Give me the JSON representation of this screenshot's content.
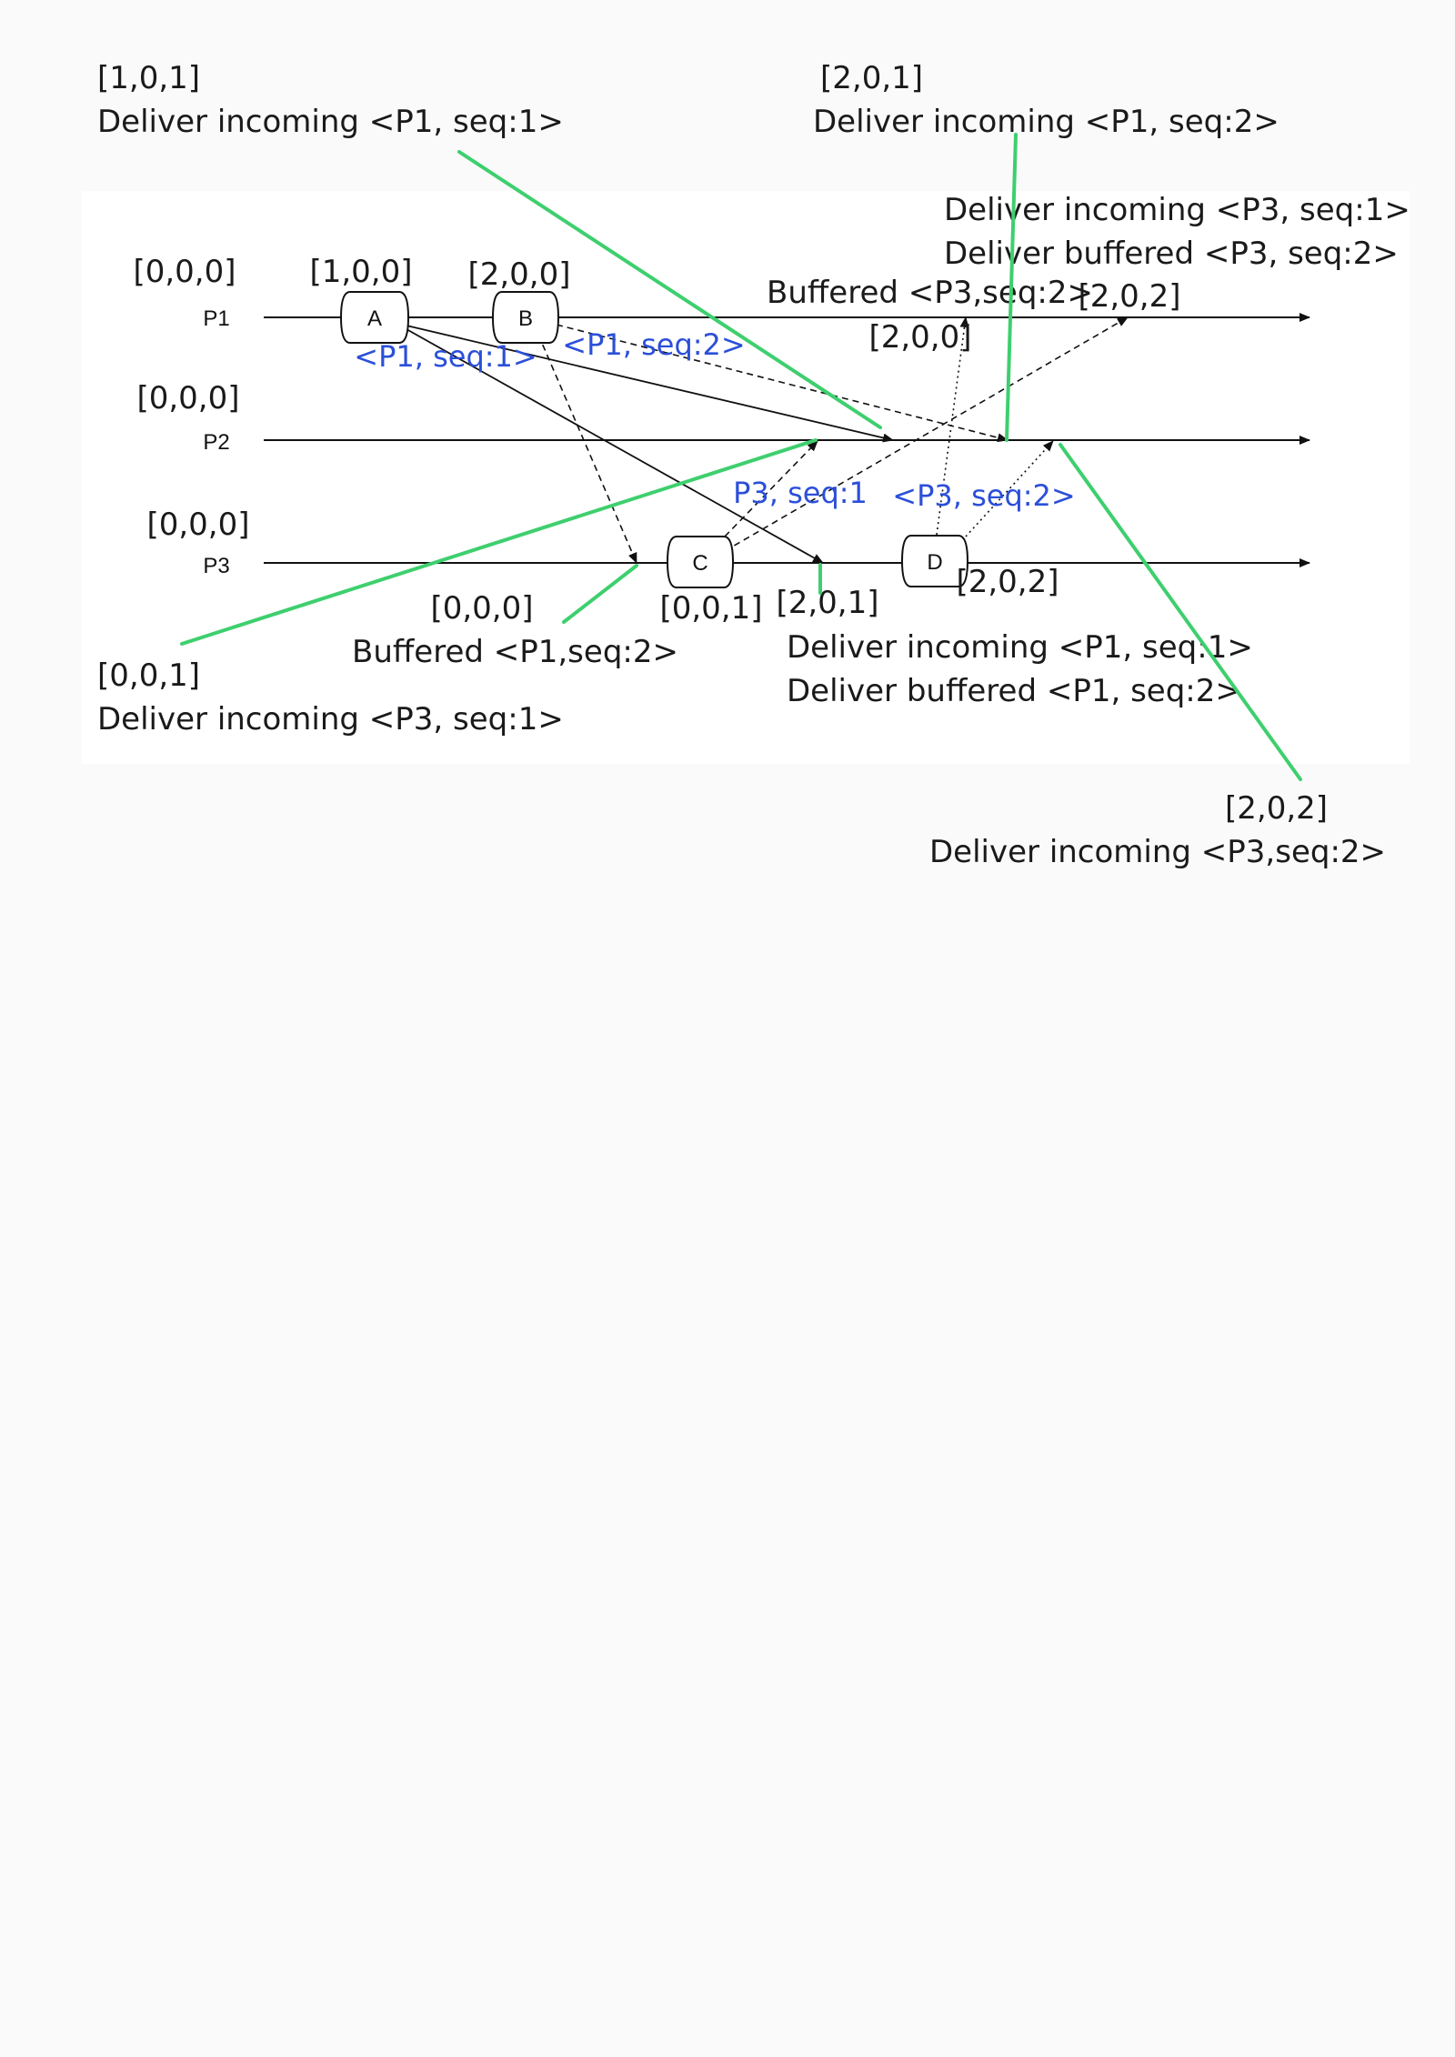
{
  "processes": [
    {
      "label": "P1",
      "initial_clock": "[0,0,0]"
    },
    {
      "label": "P2",
      "initial_clock": "[0,0,0]"
    },
    {
      "label": "P3",
      "initial_clock": "[0,0,0]"
    }
  ],
  "events": [
    {
      "label": "A",
      "clock": "[1,0,0]"
    },
    {
      "label": "B",
      "clock": "[2,0,0]"
    },
    {
      "label": "C",
      "clock": "[0,0,1]"
    },
    {
      "label": "D",
      "clock": "[2,0,2]"
    }
  ],
  "messages": {
    "m1": "<P1, seq:1>",
    "m2": "<P1, seq:2>",
    "m3": "P3, seq:1",
    "m4": "<P3, seq:2>"
  },
  "p1_receive_clocks": {
    "first": "[2,0,0]",
    "second": "[2,0,2]"
  },
  "p3_receive_clock": "[2,0,1]",
  "p3_buffer_clock": "[0,0,0]",
  "annotations": {
    "top_left": {
      "clock": "[1,0,1]",
      "text": "Deliver incoming <P1, seq:1>"
    },
    "top_right": {
      "clock": "[2,0,1]",
      "text": "Deliver incoming <P1, seq:2>"
    },
    "p1_deliver": {
      "line1": "Deliver incoming <P3, seq:1>",
      "line2": "Deliver buffered <P3, seq:2>"
    },
    "p1_buffered": "Buffered <P3,seq:2>",
    "p3_buffered": "Buffered <P1,seq:2>",
    "p3_deliver": {
      "line1": "Deliver incoming <P1, seq:1>",
      "line2": "Deliver buffered <P1, seq:2>"
    },
    "bottom_left": {
      "clock": "[0,0,1]",
      "text": "Deliver incoming <P3, seq:1>"
    },
    "bottom_right": {
      "clock": "[2,0,2]",
      "text": "Deliver incoming <P3,seq:2>"
    }
  },
  "colors": {
    "leader": "#3ecf6e",
    "message_label": "#2b4fd9",
    "line": "#1a1a1a"
  }
}
